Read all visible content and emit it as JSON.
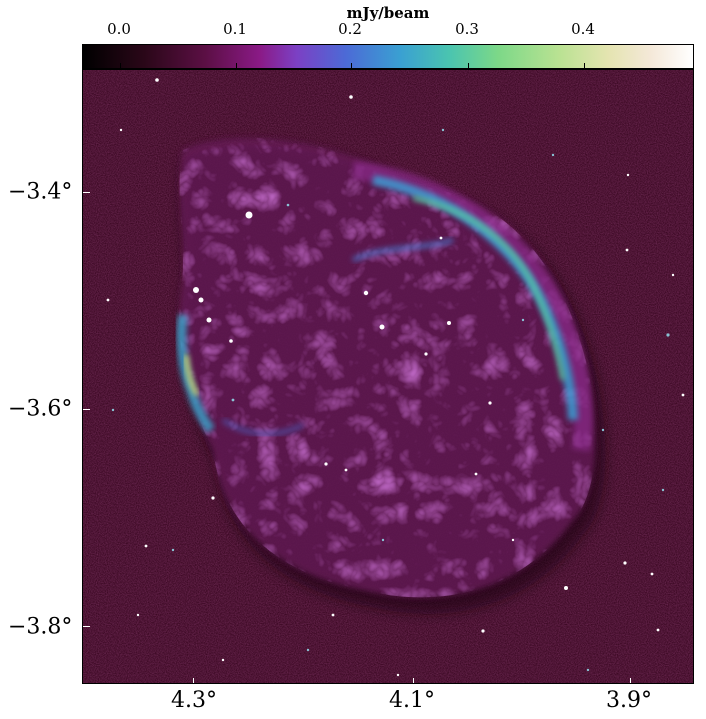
{
  "colorbar": {
    "label": "mJy/beam",
    "ticks": [
      "0.0",
      "0.1",
      "0.2",
      "0.3",
      "0.4"
    ],
    "range": [
      -0.03,
      0.48
    ],
    "colormap": "cubehelix-like",
    "colors": [
      "#000000",
      "#5b0f44",
      "#8a1a86",
      "#4c6ad6",
      "#4ac4b0",
      "#b9e292",
      "#ffffff"
    ]
  },
  "axes": {
    "x_ticks": [
      "4.3°",
      "4.1°",
      "3.9°"
    ],
    "y_ticks": [
      "−3.4°",
      "−3.6°",
      "−3.8°"
    ]
  }
}
